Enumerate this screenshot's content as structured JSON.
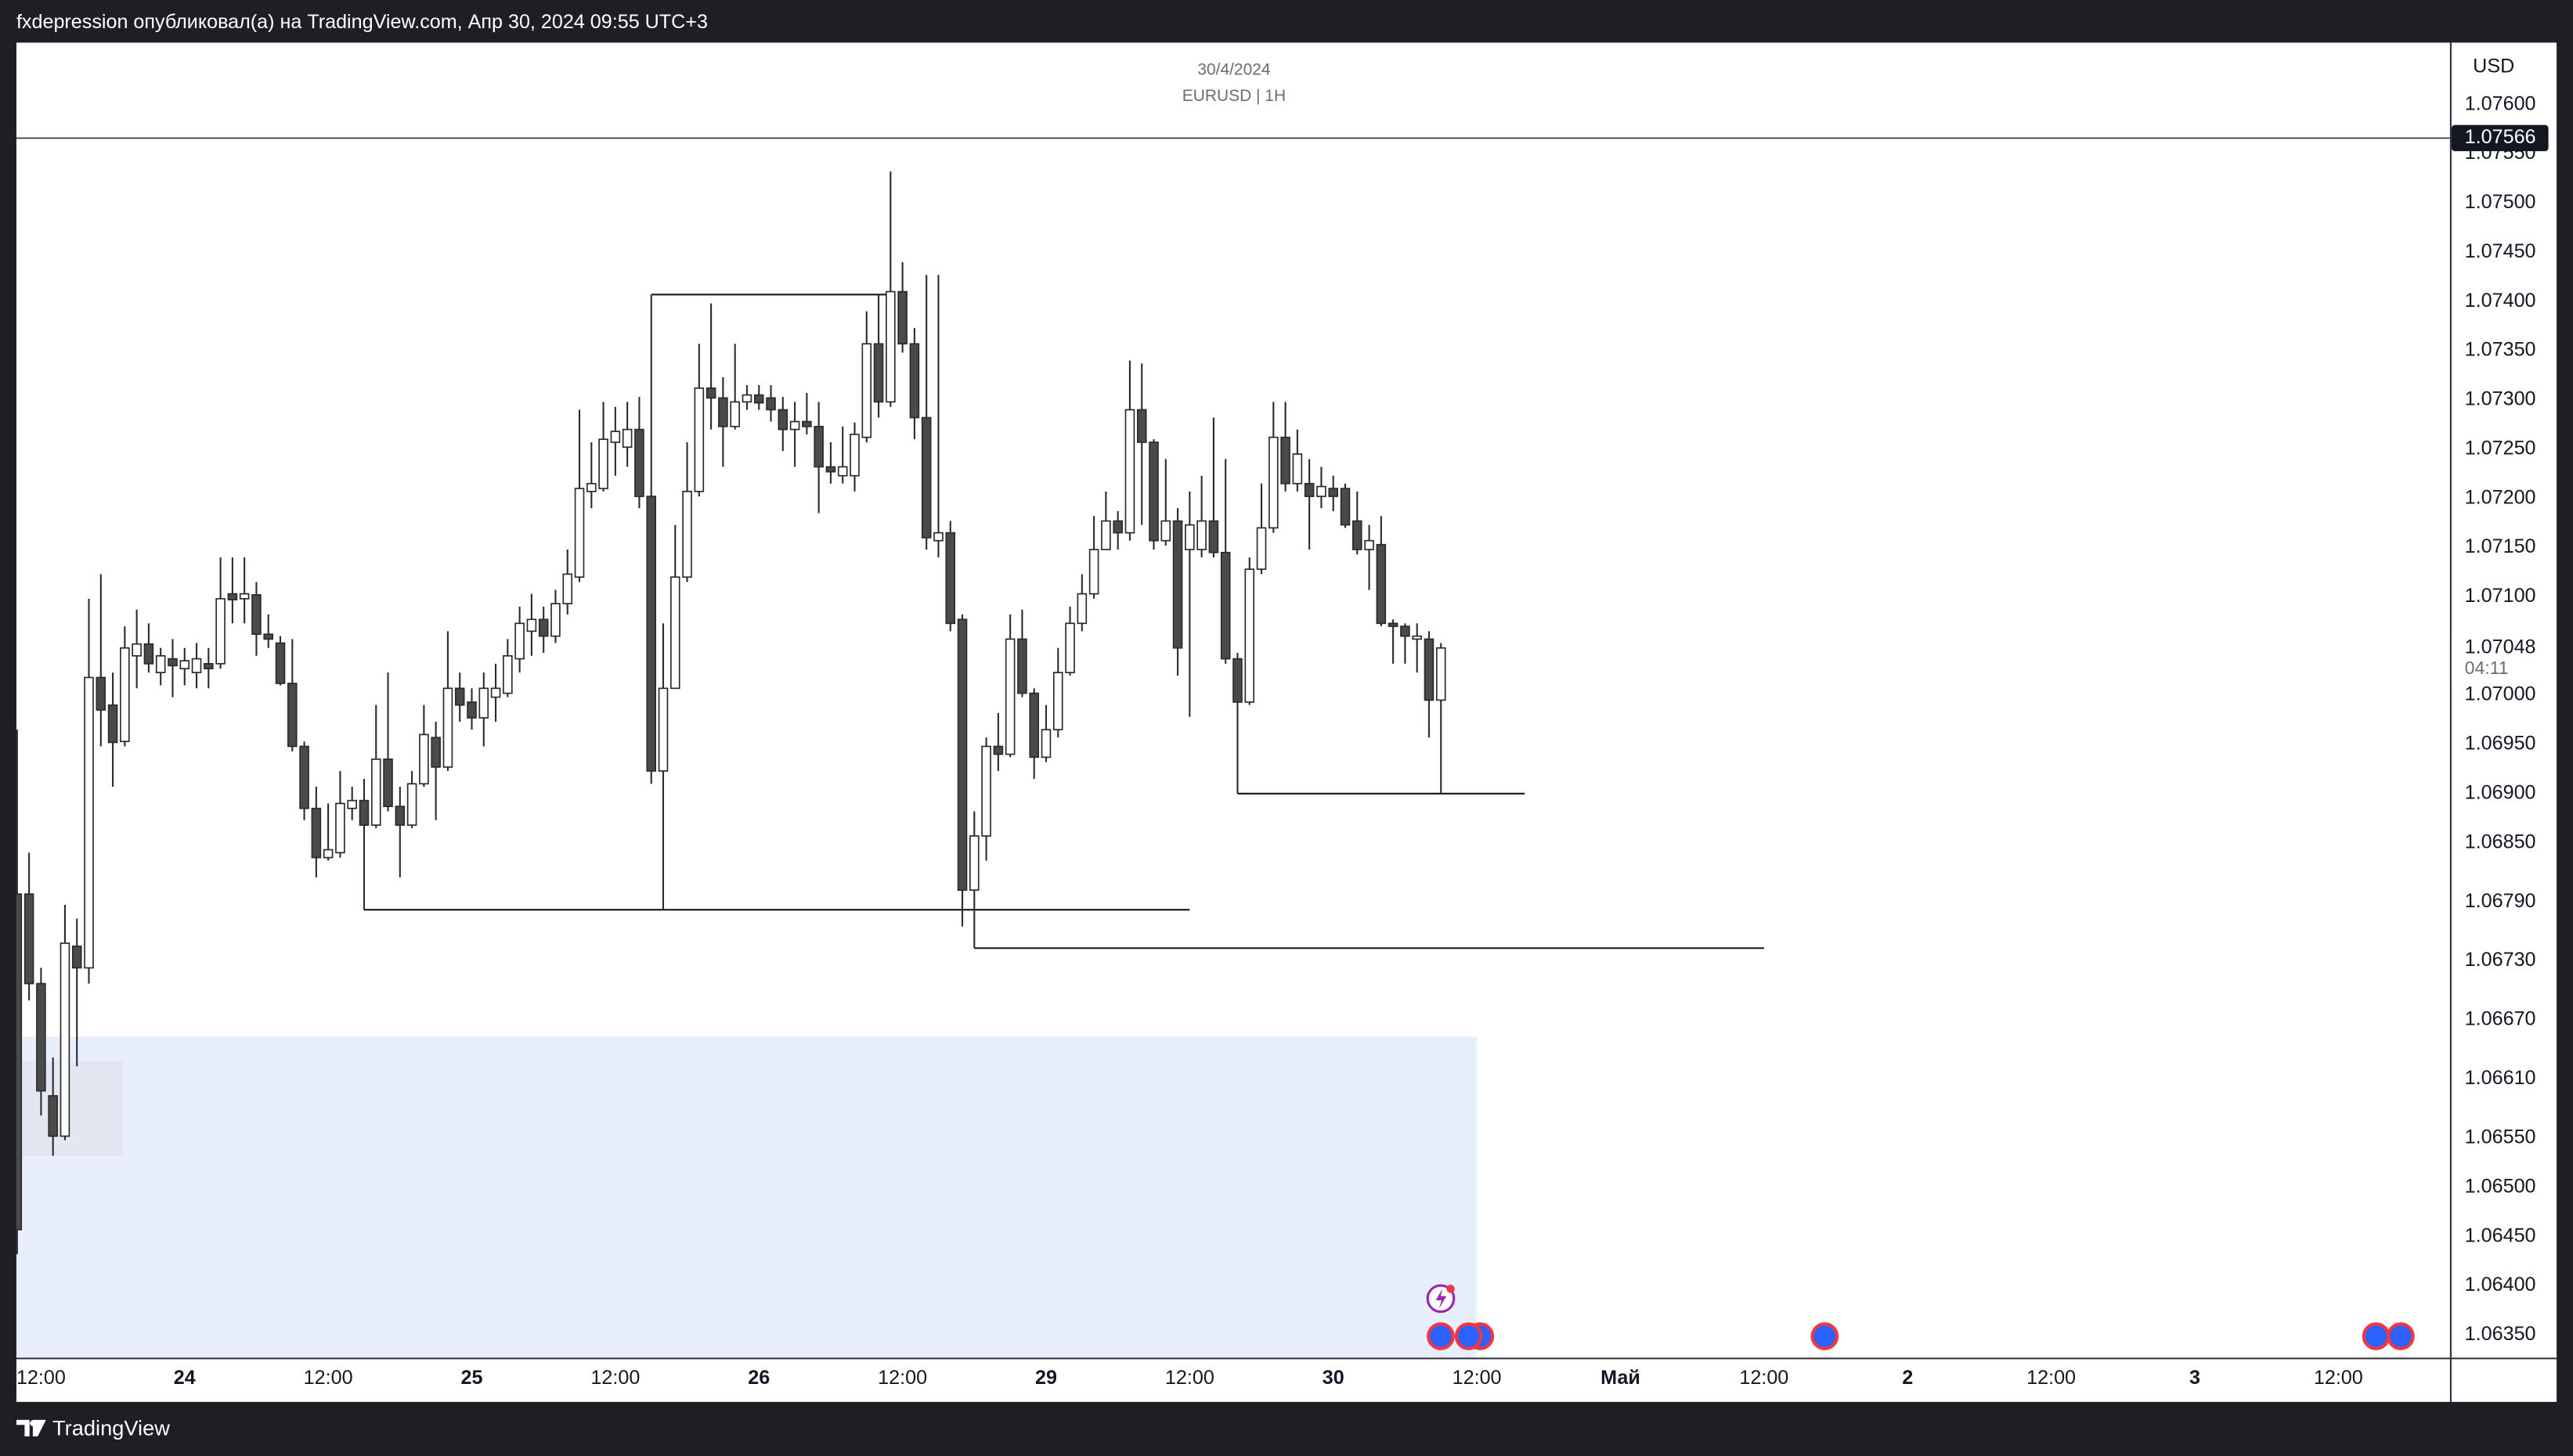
{
  "header": {
    "text": "fxdepression опубликовал(а) на TradingView.com, Апр 30, 2024 09:55 UTC+3"
  },
  "footer": {
    "brand": "TradingView"
  },
  "chart_data": {
    "type": "candlestick",
    "title": "30/4/2024",
    "subtitle": "EURUSD | 1H",
    "currency": "USD",
    "countdown": "04:11",
    "up_color": "#ffffff",
    "down_color": "#4a4a4a",
    "border_color": "#2b2b2b",
    "zone_color": "#e8eefc",
    "box_color": "#e1e5ee",
    "ylim": [
      1.06327,
      1.07663
    ],
    "yticks": [
      {
        "value": 1.076,
        "label": "1.07600"
      },
      {
        "value": 1.0755,
        "label": "1.07550"
      },
      {
        "value": 1.075,
        "label": "1.07500"
      },
      {
        "value": 1.0745,
        "label": "1.07450"
      },
      {
        "value": 1.074,
        "label": "1.07400"
      },
      {
        "value": 1.0735,
        "label": "1.07350"
      },
      {
        "value": 1.073,
        "label": "1.07300"
      },
      {
        "value": 1.0725,
        "label": "1.07250"
      },
      {
        "value": 1.072,
        "label": "1.07200"
      },
      {
        "value": 1.0715,
        "label": "1.07150"
      },
      {
        "value": 1.071,
        "label": "1.07100"
      },
      {
        "value": 1.07,
        "label": "1.07000"
      },
      {
        "value": 1.0695,
        "label": "1.06950"
      },
      {
        "value": 1.069,
        "label": "1.06900"
      },
      {
        "value": 1.0685,
        "label": "1.06850"
      },
      {
        "value": 1.0679,
        "label": "1.06790"
      },
      {
        "value": 1.0673,
        "label": "1.06730"
      },
      {
        "value": 1.0667,
        "label": "1.06670"
      },
      {
        "value": 1.0661,
        "label": "1.06610"
      },
      {
        "value": 1.0655,
        "label": "1.06550"
      },
      {
        "value": 1.065,
        "label": "1.06500"
      },
      {
        "value": 1.0645,
        "label": "1.06450"
      },
      {
        "value": 1.064,
        "label": "1.06400"
      },
      {
        "value": 1.0635,
        "label": "1.06350"
      }
    ],
    "hline": 1.07566,
    "levels": [
      1.07407,
      1.06782,
      1.06743,
      1.069
    ],
    "zone_top": 1.06653,
    "box": [
      1.06628,
      1.06532
    ],
    "categories": [
      null,
      null,
      "12:00",
      null,
      null,
      null,
      null,
      null,
      null,
      null,
      null,
      null,
      null,
      null,
      "24",
      null,
      null,
      null,
      null,
      null,
      null,
      null,
      null,
      null,
      null,
      null,
      "12:00",
      null,
      null,
      null,
      null,
      null,
      null,
      null,
      null,
      null,
      null,
      null,
      "25",
      null,
      null,
      null,
      null,
      null,
      null,
      null,
      null,
      null,
      null,
      null,
      "12:00",
      null,
      null,
      null,
      null,
      null,
      null,
      null,
      null,
      null,
      null,
      null,
      "26",
      null,
      null,
      null,
      null,
      null,
      null,
      null,
      null,
      null,
      null,
      null,
      "12:00",
      null,
      null,
      null,
      null,
      null,
      null,
      null,
      null,
      null,
      null,
      null,
      "29",
      null,
      null,
      null,
      null,
      null,
      null,
      null,
      null,
      null,
      null,
      null,
      "12:00",
      null,
      null,
      null,
      null,
      null,
      null,
      null,
      null,
      null,
      null,
      null,
      "30",
      null,
      null,
      null,
      null,
      null,
      null,
      null,
      null,
      null,
      null,
      null,
      "12:00",
      null,
      null,
      null,
      null,
      null,
      null,
      null,
      null,
      null,
      null,
      null,
      "Май",
      null,
      null,
      null,
      null,
      null,
      null,
      null,
      null,
      null,
      null,
      null,
      "12:00",
      null,
      null,
      null,
      null,
      null,
      null,
      null,
      null,
      null,
      null,
      null,
      "2",
      null,
      null,
      null,
      null,
      null,
      null,
      null,
      null,
      null,
      null,
      null,
      "12:00",
      null,
      null,
      null,
      null,
      null,
      null,
      null,
      null,
      null,
      null,
      null,
      "3",
      null,
      null,
      null,
      null,
      null,
      null,
      null,
      null,
      null,
      null,
      null,
      "12:00",
      null,
      null,
      null,
      null,
      null,
      null,
      null,
      null,
      null
    ],
    "open": [
      1.06798,
      1.06798,
      1.06707,
      1.06593,
      1.06552,
      1.06745,
      1.06723,
      1.07018,
      1.0699,
      1.06953,
      1.0704,
      1.07052,
      1.07023,
      1.07037,
      1.07027,
      1.07023,
      1.07032,
      1.07032,
      1.07103,
      1.07098,
      1.07102,
      1.07062,
      1.07053,
      1.07012,
      1.06948,
      1.06885,
      1.06835,
      1.0684,
      1.06885,
      1.06893,
      1.06868,
      1.06935,
      1.06887,
      1.06868,
      1.0691,
      1.06957,
      1.06927,
      1.07007,
      1.06993,
      1.06977,
      1.06998,
      1.07002,
      1.07037,
      1.07065,
      1.07077,
      1.0706,
      1.07093,
      1.0712,
      1.07207,
      1.0721,
      1.07257,
      1.07252,
      1.0727,
      1.07202,
      1.06923,
      1.07007,
      1.0712,
      1.07207,
      1.07312,
      1.07302,
      1.07273,
      1.07298,
      1.07305,
      1.07302,
      1.0729,
      1.0727,
      1.07278,
      1.07273,
      1.07232,
      1.07223,
      1.07223,
      1.07262,
      1.07357,
      1.07298,
      1.0741,
      1.07357,
      1.07282,
      1.07157,
      1.07165,
      1.07077,
      1.06802,
      1.06857,
      1.06948,
      1.0694,
      1.07057,
      1.07002,
      1.06937,
      1.06965,
      1.07023,
      1.07073,
      1.07103,
      1.07148,
      1.07177,
      1.07165,
      1.0729,
      1.07257,
      1.07157,
      1.07177,
      1.07148,
      1.07148,
      1.07177,
      1.07145,
      1.07037,
      1.06993,
      1.07128,
      1.0717,
      1.07262,
      1.07215,
      1.07215,
      1.07202,
      1.0721,
      1.0721,
      1.07177,
      1.07148,
      1.07153,
      1.07073,
      1.0707,
      1.07057,
      1.07057,
      1.06995,
      null,
      null,
      null,
      null,
      null,
      null,
      null,
      null,
      null,
      null,
      null,
      null,
      null,
      null,
      null,
      null,
      null,
      null,
      null,
      null,
      null,
      null,
      null,
      null,
      null,
      null,
      null,
      null,
      null,
      null,
      null,
      null,
      null,
      null,
      null,
      null,
      null,
      null,
      null,
      null,
      null,
      null,
      null,
      null,
      null,
      null,
      null,
      null,
      null,
      null,
      null,
      null,
      null,
      null,
      null,
      null,
      null,
      null,
      null,
      null,
      null,
      null,
      null,
      null,
      null,
      null,
      null,
      null,
      null,
      null,
      null,
      null,
      null,
      null,
      null,
      null,
      null,
      null,
      null,
      null,
      null,
      null,
      null,
      null
    ],
    "high": [
      1.06965,
      1.0684,
      1.06723,
      1.06632,
      1.06787,
      1.06773,
      1.07098,
      1.07123,
      1.07023,
      1.0707,
      1.07087,
      1.07073,
      1.07048,
      1.07057,
      1.07048,
      1.07053,
      1.07048,
      1.0714,
      1.0714,
      1.0714,
      1.07115,
      1.07082,
      1.0706,
      1.07057,
      1.06953,
      1.06907,
      1.0689,
      1.06923,
      1.06907,
      1.06915,
      1.0699,
      1.07023,
      1.06907,
      1.06923,
      1.0699,
      1.06973,
      1.07065,
      1.07023,
      1.07007,
      1.07023,
      1.07032,
      1.07057,
      1.0709,
      1.07103,
      1.0709,
      1.07107,
      1.07148,
      1.0729,
      1.07257,
      1.07298,
      1.07293,
      1.07298,
      1.07303,
      1.07407,
      1.07073,
      1.07173,
      1.07257,
      1.07357,
      1.07398,
      1.07323,
      1.07357,
      1.07315,
      1.07315,
      1.07315,
      1.07303,
      1.07298,
      1.07307,
      1.07298,
      1.07257,
      1.07273,
      1.07277,
      1.0739,
      1.07407,
      1.07532,
      1.0744,
      1.07373,
      1.07427,
      1.07427,
      1.07177,
      1.07082,
      1.06882,
      1.06957,
      1.06982,
      1.07082,
      1.07087,
      1.07007,
      1.0699,
      1.07048,
      1.0709,
      1.07123,
      1.07182,
      1.07207,
      1.07187,
      1.0734,
      1.07337,
      1.0726,
      1.0724,
      1.0719,
      1.07207,
      1.07223,
      1.07282,
      1.0724,
      1.07043,
      1.0714,
      1.07215,
      1.07298,
      1.07298,
      1.0727,
      1.0724,
      1.07232,
      1.07223,
      1.07215,
      1.07207,
      1.07173,
      1.07182,
      1.07077,
      1.07073,
      1.07073,
      1.07065,
      1.07053,
      null,
      null,
      null,
      null,
      null,
      null,
      null,
      null,
      null,
      null,
      null,
      null,
      null,
      null,
      null,
      null,
      null,
      null,
      null,
      null,
      null,
      null,
      null,
      null,
      null,
      null,
      null,
      null,
      null,
      null,
      null,
      null,
      null,
      null,
      null,
      null,
      null,
      null,
      null,
      null,
      null,
      null,
      null,
      null,
      null,
      null,
      null,
      null,
      null,
      null,
      null,
      null,
      null,
      null,
      null,
      null,
      null,
      null,
      null,
      null,
      null,
      null,
      null,
      null,
      null,
      null,
      null,
      null,
      null,
      null,
      null,
      null,
      null,
      null,
      null,
      null,
      null,
      null,
      null,
      null,
      null,
      null,
      null,
      null
    ],
    "low": [
      1.06432,
      1.0669,
      1.06573,
      1.06532,
      1.06548,
      1.06623,
      1.06707,
      1.06948,
      1.06907,
      1.06948,
      1.07007,
      1.07023,
      1.0701,
      1.06998,
      1.0701,
      1.07007,
      1.07007,
      1.07027,
      1.07073,
      1.07073,
      1.0704,
      1.07048,
      1.0701,
      1.06943,
      1.06873,
      1.06815,
      1.06832,
      1.06835,
      1.06873,
      1.06782,
      1.06865,
      1.06882,
      1.06815,
      1.06865,
      1.06907,
      1.06873,
      1.06923,
      1.06973,
      1.06965,
      1.06948,
      1.06973,
      1.06998,
      1.07023,
      1.0704,
      1.07043,
      1.07053,
      1.07082,
      1.07115,
      1.0719,
      1.07207,
      1.07223,
      1.07232,
      1.0719,
      1.0691,
      1.06782,
      1.07007,
      1.07115,
      1.07202,
      1.0727,
      1.07232,
      1.0727,
      1.0729,
      1.0729,
      1.07278,
      1.07248,
      1.07232,
      1.07265,
      1.07185,
      1.07215,
      1.07215,
      1.07207,
      1.07257,
      1.07282,
      1.07293,
      1.07348,
      1.0726,
      1.07148,
      1.0714,
      1.07065,
      1.06765,
      1.06743,
      1.06832,
      1.06923,
      1.06937,
      1.06998,
      1.06915,
      1.06932,
      1.06957,
      1.0702,
      1.07065,
      1.07098,
      1.07148,
      1.07148,
      1.07157,
      1.07173,
      1.07148,
      1.07152,
      1.0702,
      1.06978,
      1.0714,
      1.0714,
      1.07032,
      1.069,
      1.0699,
      1.07123,
      1.07165,
      1.07207,
      1.07207,
      1.07148,
      1.0719,
      1.07187,
      1.0717,
      1.07143,
      1.07107,
      1.0707,
      1.07032,
      1.07032,
      1.07023,
      1.06957,
      1.069,
      null,
      null,
      null,
      null,
      null,
      null,
      null,
      null,
      null,
      null,
      null,
      null,
      null,
      null,
      null,
      null,
      null,
      null,
      null,
      null,
      null,
      null,
      null,
      null,
      null,
      null,
      null,
      null,
      null,
      null,
      null,
      null,
      null,
      null,
      null,
      null,
      null,
      null,
      null,
      null,
      null,
      null,
      null,
      null,
      null,
      null,
      null,
      null,
      null,
      null,
      null,
      null,
      null,
      null,
      null,
      null,
      null,
      null,
      null,
      null,
      null,
      null,
      null,
      null,
      null,
      null,
      null,
      null,
      null,
      null,
      null,
      null,
      null,
      null,
      null,
      null,
      null,
      null,
      null,
      null,
      null,
      null,
      null,
      null
    ],
    "close": [
      1.06457,
      1.06707,
      1.06598,
      1.06552,
      1.06748,
      1.06723,
      1.07018,
      1.06985,
      1.06952,
      1.07048,
      1.07052,
      1.07032,
      1.0704,
      1.0703,
      1.07035,
      1.07037,
      1.07027,
      1.07098,
      1.07097,
      1.07103,
      1.07062,
      1.07057,
      1.07012,
      1.06948,
      1.06885,
      1.06835,
      1.06843,
      1.0689,
      1.06893,
      1.06868,
      1.06935,
      1.06887,
      1.06868,
      1.0691,
      1.0696,
      1.06927,
      1.07007,
      1.0699,
      1.06977,
      1.07007,
      1.07007,
      1.0704,
      1.07073,
      1.07077,
      1.0706,
      1.07093,
      1.07123,
      1.0721,
      1.07215,
      1.0726,
      1.07268,
      1.0727,
      1.07202,
      1.06923,
      1.07007,
      1.0712,
      1.07207,
      1.07312,
      1.07302,
      1.07273,
      1.07298,
      1.07305,
      1.07297,
      1.0729,
      1.0727,
      1.07278,
      1.07273,
      1.07232,
      1.07227,
      1.07232,
      1.07265,
      1.07357,
      1.07298,
      1.0741,
      1.07357,
      1.07282,
      1.0716,
      1.07165,
      1.07073,
      1.06802,
      1.06857,
      1.06948,
      1.0694,
      1.07057,
      1.07002,
      1.06937,
      1.06965,
      1.07023,
      1.07073,
      1.07103,
      1.07148,
      1.07177,
      1.07165,
      1.0729,
      1.07257,
      1.07157,
      1.07177,
      1.07048,
      1.07173,
      1.07177,
      1.07145,
      1.07037,
      1.06993,
      1.07128,
      1.0717,
      1.07262,
      1.07215,
      1.07245,
      1.07202,
      1.07212,
      1.07202,
      1.07173,
      1.07148,
      1.07157,
      1.07073,
      1.0707,
      1.0706,
      1.0706,
      1.06995,
      1.07048,
      null,
      null,
      null,
      null,
      null,
      null,
      null,
      null,
      null,
      null,
      null,
      null,
      null,
      null,
      null,
      null,
      null,
      null,
      null,
      null,
      null,
      null,
      null,
      null,
      null,
      null,
      null,
      null,
      null,
      null,
      null,
      null,
      null,
      null,
      null,
      null,
      null,
      null,
      null,
      null,
      null,
      null,
      null,
      null,
      null,
      null,
      null,
      null,
      null,
      null,
      null,
      null,
      null,
      null,
      null,
      null,
      null,
      null,
      null,
      null,
      null,
      null,
      null,
      null,
      null,
      null,
      null,
      null,
      null,
      null,
      null,
      null,
      null,
      null,
      null,
      null,
      null,
      null,
      null,
      null,
      null,
      null,
      null,
      null
    ]
  }
}
